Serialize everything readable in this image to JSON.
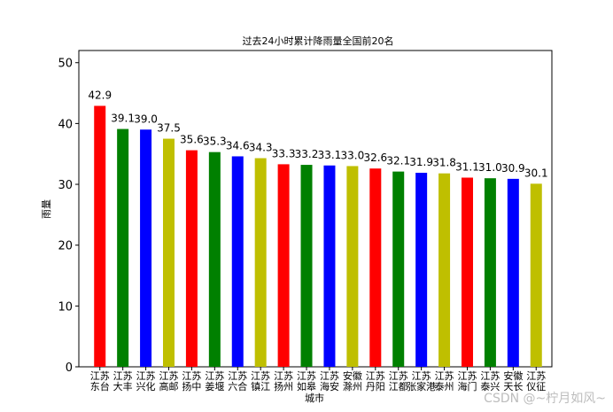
{
  "chart_data": {
    "type": "bar",
    "title": "过去24小时累计降雨量全国前20名",
    "xlabel": "城市",
    "ylabel": "雨量",
    "ylim": [
      0,
      52
    ],
    "yticks": [
      0,
      10,
      20,
      30,
      40,
      50
    ],
    "grid": false,
    "categories": [
      [
        "江苏",
        "东台"
      ],
      [
        "江苏",
        "大丰"
      ],
      [
        "江苏",
        "兴化"
      ],
      [
        "江苏",
        "高邮"
      ],
      [
        "江苏",
        "扬中"
      ],
      [
        "江苏",
        "姜堰"
      ],
      [
        "江苏",
        "六合"
      ],
      [
        "江苏",
        "镇江"
      ],
      [
        "江苏",
        "扬州"
      ],
      [
        "江苏",
        "如皋"
      ],
      [
        "江苏",
        "海安"
      ],
      [
        "安徽",
        "滁州"
      ],
      [
        "江苏",
        "丹阳"
      ],
      [
        "江苏",
        "江都"
      ],
      [
        "江苏",
        "张家港"
      ],
      [
        "江苏",
        "泰州"
      ],
      [
        "江苏",
        "海门"
      ],
      [
        "江苏",
        "泰兴"
      ],
      [
        "安徽",
        "天长"
      ],
      [
        "江苏",
        "仪征"
      ]
    ],
    "values": [
      42.9,
      39.1,
      39.0,
      37.5,
      35.6,
      35.3,
      34.6,
      34.3,
      33.3,
      33.2,
      33.1,
      33.0,
      32.6,
      32.1,
      31.9,
      31.8,
      31.1,
      31.0,
      30.9,
      30.1
    ],
    "value_labels": [
      "42.9",
      "39.1",
      "39.0",
      "37.5",
      "35.6",
      "35.3",
      "34.6",
      "34.3",
      "33.3",
      "33.2",
      "33.1",
      "33.0",
      "32.6",
      "32.1",
      "31.9",
      "31.8",
      "31.1",
      "31.0",
      "30.9",
      "30.1"
    ],
    "bar_colors": [
      "#ff0000",
      "#008000",
      "#0000ff",
      "#bfbf00"
    ]
  },
  "watermark": "CSDN @~柠月如风~"
}
